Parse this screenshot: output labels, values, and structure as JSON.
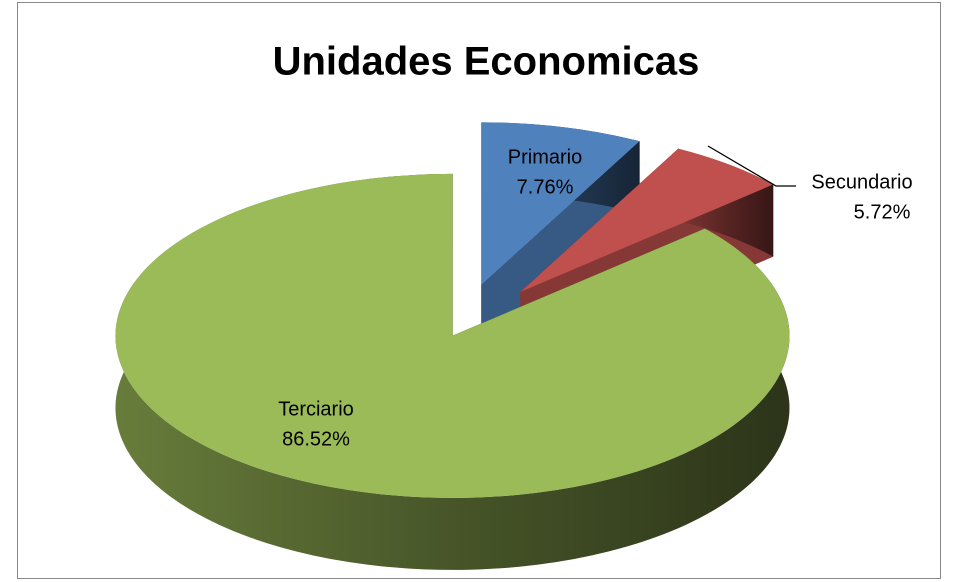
{
  "chart_data": {
    "type": "pie3d",
    "title": "Unidades Economicas",
    "categories": [
      "Primario",
      "Secundario",
      "Terciario"
    ],
    "values": [
      7.76,
      5.72,
      86.52
    ],
    "value_labels": [
      "7.76%",
      "5.72%",
      "86.52%"
    ],
    "colors": [
      "#4f81bd",
      "#c0504d",
      "#9bbb59"
    ]
  }
}
